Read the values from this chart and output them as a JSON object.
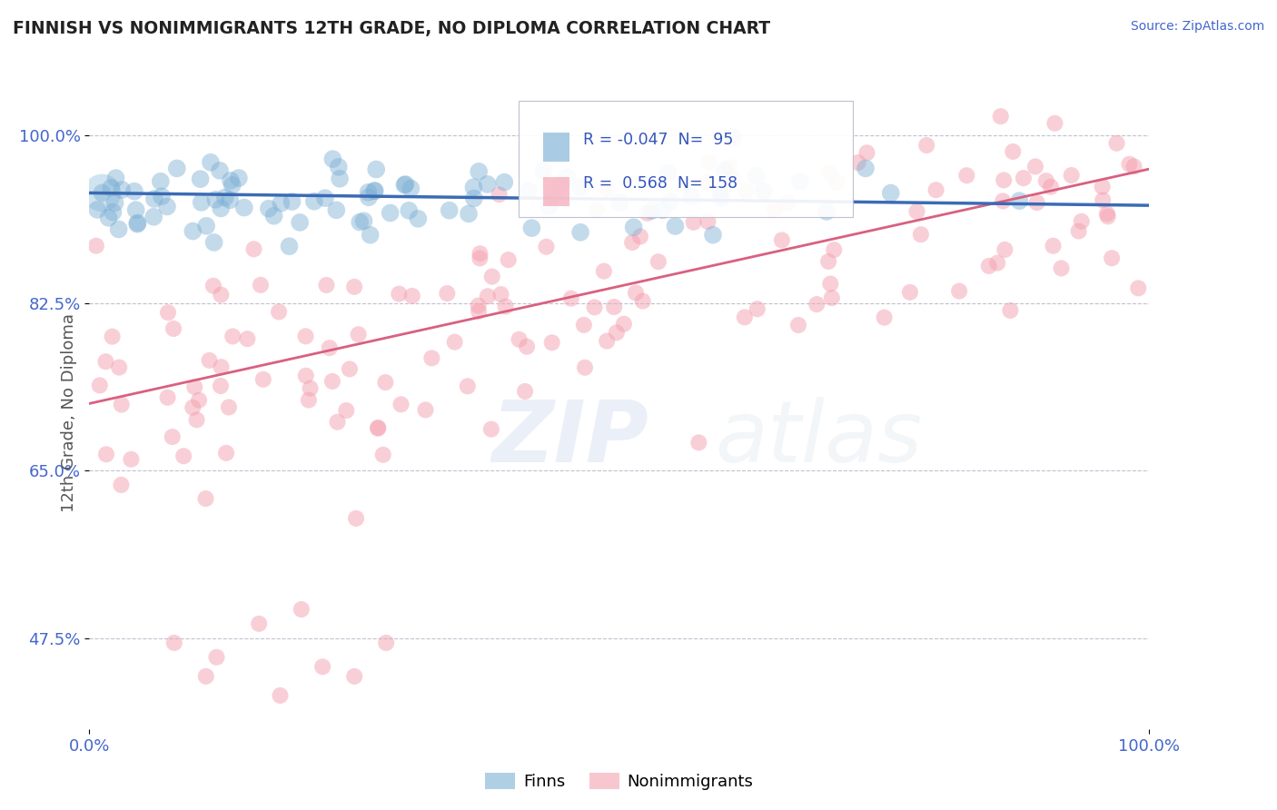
{
  "title": "FINNISH VS NONIMMIGRANTS 12TH GRADE, NO DIPLOMA CORRELATION CHART",
  "source_text": "Source: ZipAtlas.com",
  "ylabel": "12th Grade, No Diploma",
  "watermark_zip": "ZIP",
  "watermark_atlas": "atlas",
  "xlim": [
    0.0,
    1.0
  ],
  "ylim": [
    0.38,
    1.04
  ],
  "yticks": [
    0.475,
    0.65,
    0.825,
    1.0
  ],
  "ytick_labels": [
    "47.5%",
    "65.0%",
    "82.5%",
    "100.0%"
  ],
  "xtick_labels": [
    "0.0%",
    "100.0%"
  ],
  "finn_R": -0.047,
  "finn_N": 95,
  "nonimm_R": 0.568,
  "nonimm_N": 158,
  "finn_color": "#7BAFD4",
  "nonimm_color": "#F4A0B0",
  "finn_line_color": "#3B6BB5",
  "nonimm_line_color": "#D96080",
  "legend_label_finn": "Finns",
  "legend_label_nonimm": "Nonimmigrants",
  "background_color": "#FFFFFF",
  "grid_color": "#BBBBCC",
  "axis_label_color": "#4466CC",
  "title_color": "#222222",
  "finn_line_y0": 0.94,
  "finn_line_y1": 0.927,
  "nonimm_line_y0": 0.72,
  "nonimm_line_y1": 0.965
}
